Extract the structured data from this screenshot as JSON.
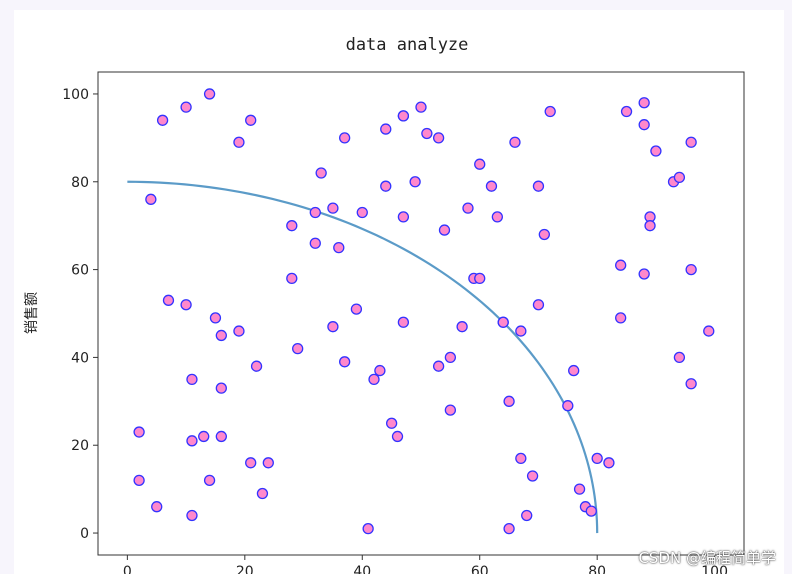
{
  "chart_data": {
    "type": "scatter",
    "title": "data analyze",
    "xlabel": "",
    "ylabel": "销售额",
    "xlim": [
      -5,
      105
    ],
    "ylim": [
      -5,
      105
    ],
    "xticks": [
      0,
      20,
      40,
      60,
      80,
      100
    ],
    "yticks": [
      0,
      20,
      40,
      60,
      80,
      100
    ],
    "grid": false,
    "colors": {
      "marker_face": "#ff88cc",
      "marker_edge": "#3333ff",
      "curve": "#5b9bc8",
      "axes": "#333333"
    },
    "points": [
      [
        2,
        23
      ],
      [
        2,
        12
      ],
      [
        4,
        76
      ],
      [
        5,
        6
      ],
      [
        6,
        94
      ],
      [
        7,
        53
      ],
      [
        10,
        97
      ],
      [
        10,
        52
      ],
      [
        11,
        4
      ],
      [
        11,
        21
      ],
      [
        11,
        35
      ],
      [
        13,
        22
      ],
      [
        14,
        100
      ],
      [
        14,
        12
      ],
      [
        15,
        49
      ],
      [
        16,
        45
      ],
      [
        16,
        33
      ],
      [
        16,
        22
      ],
      [
        19,
        46
      ],
      [
        19,
        89
      ],
      [
        21,
        94
      ],
      [
        21,
        16
      ],
      [
        22,
        38
      ],
      [
        23,
        9
      ],
      [
        24,
        16
      ],
      [
        28,
        58
      ],
      [
        28,
        70
      ],
      [
        29,
        42
      ],
      [
        32,
        73
      ],
      [
        32,
        66
      ],
      [
        33,
        82
      ],
      [
        35,
        47
      ],
      [
        35,
        74
      ],
      [
        36,
        65
      ],
      [
        37,
        90
      ],
      [
        37,
        39
      ],
      [
        39,
        51
      ],
      [
        40,
        73
      ],
      [
        41,
        1
      ],
      [
        42,
        35
      ],
      [
        43,
        37
      ],
      [
        44,
        92
      ],
      [
        44,
        79
      ],
      [
        45,
        25
      ],
      [
        46,
        22
      ],
      [
        47,
        48
      ],
      [
        47,
        72
      ],
      [
        47,
        95
      ],
      [
        47,
        95
      ],
      [
        49,
        80
      ],
      [
        50,
        97
      ],
      [
        51,
        91
      ],
      [
        53,
        90
      ],
      [
        53,
        38
      ],
      [
        54,
        69
      ],
      [
        55,
        40
      ],
      [
        55,
        28
      ],
      [
        57,
        47
      ],
      [
        58,
        74
      ],
      [
        59,
        58
      ],
      [
        60,
        84
      ],
      [
        60,
        58
      ],
      [
        62,
        79
      ],
      [
        63,
        72
      ],
      [
        64,
        48
      ],
      [
        64,
        48
      ],
      [
        65,
        1
      ],
      [
        65,
        30
      ],
      [
        66,
        89
      ],
      [
        67,
        46
      ],
      [
        67,
        17
      ],
      [
        68,
        4
      ],
      [
        69,
        13
      ],
      [
        70,
        79
      ],
      [
        70,
        52
      ],
      [
        71,
        68
      ],
      [
        72,
        96
      ],
      [
        75,
        29
      ],
      [
        76,
        37
      ],
      [
        77,
        10
      ],
      [
        78,
        6
      ],
      [
        79,
        5
      ],
      [
        80,
        17
      ],
      [
        82,
        16
      ],
      [
        84,
        61
      ],
      [
        84,
        49
      ],
      [
        85,
        96
      ],
      [
        88,
        59
      ],
      [
        88,
        93
      ],
      [
        88,
        98
      ],
      [
        89,
        72
      ],
      [
        89,
        70
      ],
      [
        90,
        87
      ],
      [
        93,
        80
      ],
      [
        94,
        81
      ],
      [
        94,
        40
      ],
      [
        96,
        89
      ],
      [
        96,
        60
      ],
      [
        96,
        34
      ],
      [
        99,
        46
      ]
    ],
    "curve": {
      "type": "quarter-ellipse",
      "center": [
        0,
        0
      ],
      "x_radius": 80,
      "y_radius": 80
    }
  },
  "watermark": "CSDN @编程简单学"
}
